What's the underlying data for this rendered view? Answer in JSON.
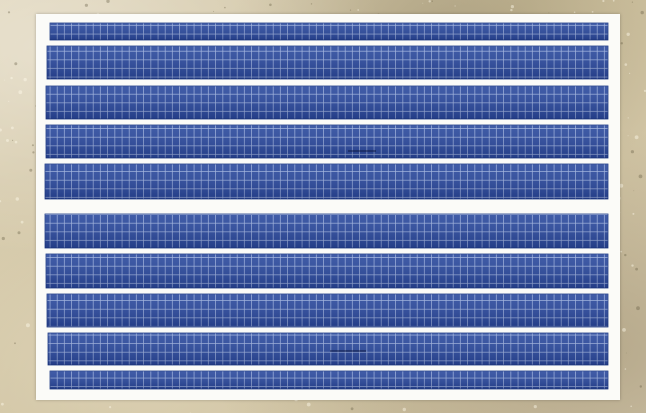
{
  "scene": {
    "subject": "solar-panel-array",
    "rows": 10,
    "colors": {
      "ground": "#cfc3a2",
      "frame": "#fbfbf8",
      "panel": "#2b4a9e",
      "panel_dark": "#1f3a86",
      "cell_line": "#9fb3e0"
    }
  }
}
